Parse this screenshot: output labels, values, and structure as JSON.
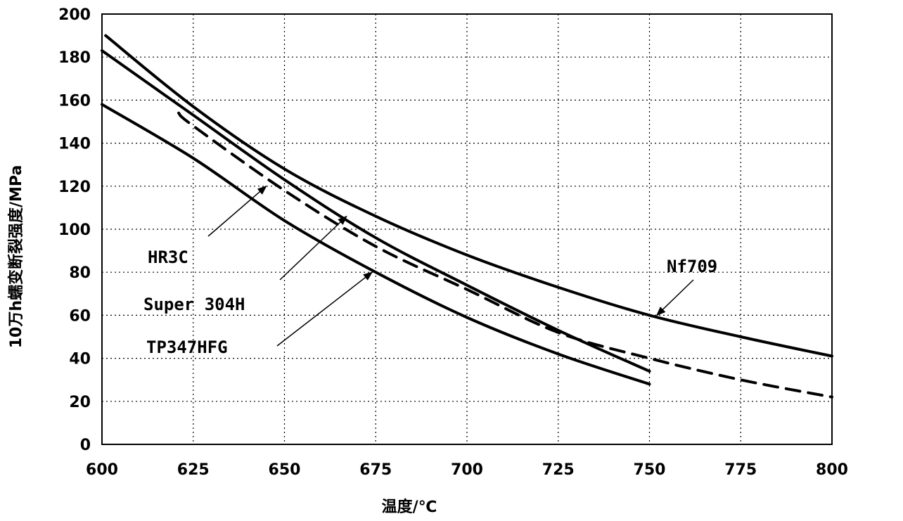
{
  "chart_data": {
    "type": "line",
    "title": "",
    "xlabel": "温度/℃",
    "ylabel": "10万h蠕变断裂强度/MPa",
    "xlim": [
      600,
      800
    ],
    "ylim": [
      0,
      200
    ],
    "xticks": [
      600,
      625,
      650,
      675,
      700,
      725,
      750,
      775,
      800
    ],
    "yticks": [
      0,
      20,
      40,
      60,
      80,
      100,
      120,
      140,
      160,
      180,
      200
    ],
    "grid": true,
    "series": [
      {
        "name": "Nf709",
        "style": "solid",
        "x": [
          601,
          625,
          650,
          675,
          700,
          725,
          750,
          775,
          800
        ],
        "y": [
          190,
          157,
          128,
          106,
          88,
          73,
          60,
          50,
          41
        ]
      },
      {
        "name": "Super 304H",
        "style": "solid",
        "x": [
          600,
          625,
          650,
          675,
          700,
          725,
          750
        ],
        "y": [
          183,
          153,
          123,
          96,
          74,
          53,
          34
        ]
      },
      {
        "name": "HR3C",
        "style": "dashed",
        "x": [
          621,
          625,
          650,
          675,
          700,
          725,
          750,
          775,
          800
        ],
        "y": [
          154,
          148,
          118,
          92,
          72,
          52,
          40,
          30,
          22
        ]
      },
      {
        "name": "TP347HFG",
        "style": "solid",
        "x": [
          600,
          625,
          650,
          675,
          700,
          725,
          750
        ],
        "y": [
          158,
          133,
          104,
          80,
          59,
          42,
          28
        ]
      }
    ]
  }
}
